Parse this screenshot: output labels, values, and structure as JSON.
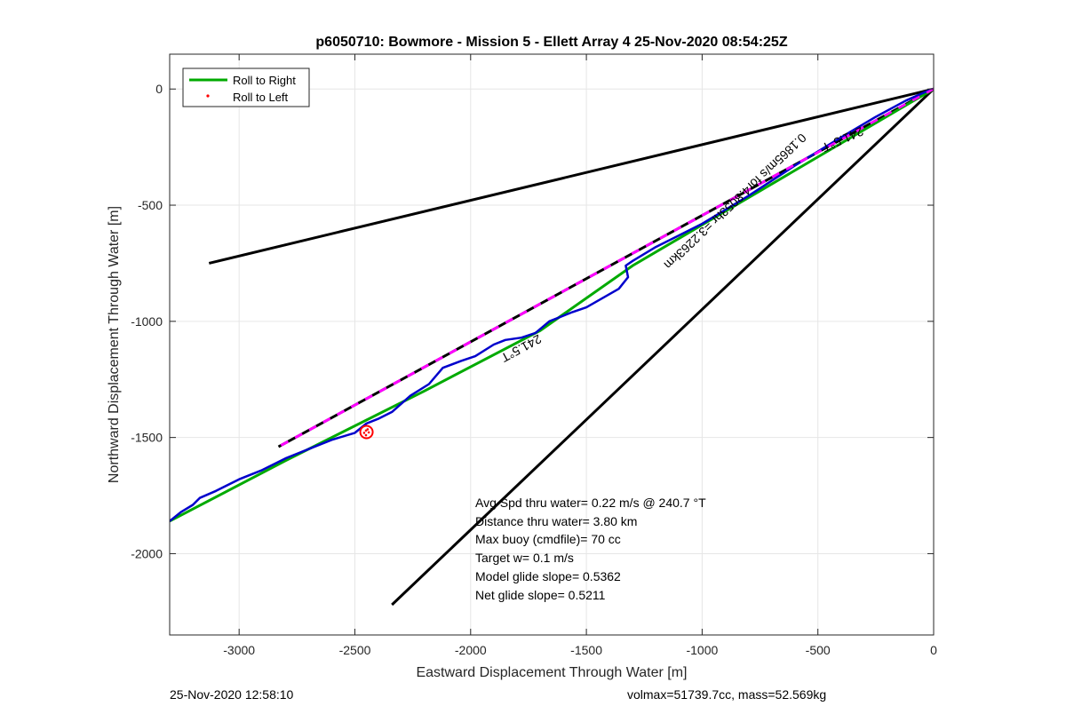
{
  "chart_data": {
    "type": "line",
    "title": "p6050710: Bowmore - Mission 5 - Ellett Array 4 25-Nov-2020 08:54:25Z",
    "xlabel": "Eastward Displacement Through Water [m]",
    "ylabel": "Northward Displacement Through Water [m]",
    "xlim": [
      -3300,
      0
    ],
    "ylim": [
      -2350,
      150
    ],
    "xticks": [
      -3000,
      -2500,
      -2000,
      -1500,
      -1000,
      -500,
      0
    ],
    "yticks": [
      -2000,
      -1500,
      -1000,
      -500,
      0
    ],
    "grid": true,
    "legend": {
      "location": "top-left",
      "entries": [
        {
          "label": "Roll to Right",
          "color": "#00aa00",
          "style": "line"
        },
        {
          "label": "Roll to Left",
          "color": "#ff0000",
          "style": "dot"
        }
      ]
    },
    "series": [
      {
        "name": "Roll to Right",
        "color": "#00aa00",
        "x": [
          0,
          -1300,
          -1700,
          -2200,
          -2800,
          -3300
        ],
        "y": [
          0,
          -760,
          -1040,
          -1300,
          -1600,
          -1860
        ]
      },
      {
        "name": "Roll to Left",
        "color": "#ff0000",
        "type": "scatter",
        "x": [
          -2445,
          -2452,
          -2460,
          -2452,
          -2440
        ],
        "y": [
          -1465,
          -1470,
          -1480,
          -1490,
          -1478
        ]
      }
    ],
    "track": {
      "color": "#0000cc",
      "x": [
        0,
        -30,
        -120,
        -250,
        -420,
        -600,
        -800,
        -1000,
        -1200,
        -1300,
        -1330,
        -1320,
        -1360,
        -1500,
        -1560,
        -1660,
        -1720,
        -1780,
        -1850,
        -1900,
        -1980,
        -2040,
        -2120,
        -2180,
        -2260,
        -2340,
        -2400,
        -2450,
        -2500,
        -2600,
        -2700,
        -2800,
        -2900,
        -3000,
        -3100,
        -3170,
        -3200,
        -3250,
        -3300
      ],
      "y": [
        0,
        -10,
        -50,
        -120,
        -220,
        -330,
        -460,
        -580,
        -680,
        -740,
        -760,
        -810,
        -860,
        -940,
        -960,
        -1000,
        -1050,
        -1070,
        -1080,
        -1100,
        -1150,
        -1170,
        -1200,
        -1270,
        -1320,
        -1390,
        -1420,
        -1440,
        -1480,
        -1510,
        -1550,
        -1590,
        -1640,
        -1680,
        -1730,
        -1760,
        -1790,
        -1820,
        -1860
      ]
    },
    "reference_lines": [
      {
        "name": "upper-bound",
        "color": "#000000",
        "x": [
          0,
          -3130
        ],
        "y": [
          0,
          -750
        ]
      },
      {
        "name": "lower-bound",
        "color": "#000000",
        "x": [
          0,
          -2340
        ],
        "y": [
          0,
          -2220
        ]
      },
      {
        "name": "heading-line",
        "color": "#000000",
        "dash_color": "#ff00ff",
        "x": [
          0,
          -2830
        ],
        "y": [
          0,
          -1540
        ]
      }
    ],
    "annotations": [
      {
        "text": "241.5°T",
        "x": -1790,
        "y": -1100,
        "rotation": 151.5
      },
      {
        "text": "241.5°T",
        "x": -400,
        "y": -200,
        "rotation": 156
      },
      {
        "text": "0.1865m/s for4.8053hr =3.2263km",
        "x": -870,
        "y": -470,
        "rotation": 136.5
      }
    ],
    "stats": [
      "Avg Spd thru water=  0.22 m/s @ 240.7 °T",
      "Distance thru water=  3.80 km",
      "Max buoy (cmdfile)= 70 cc",
      "Target w= 0.1 m/s",
      "Model glide slope= 0.5362",
      "Net glide slope= 0.5211"
    ],
    "footer_left": "25-Nov-2020 12:58:10",
    "footer_right": "volmax=51739.7cc, mass=52.569kg"
  }
}
